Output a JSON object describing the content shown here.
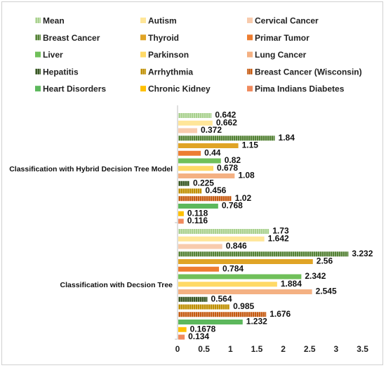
{
  "chart_data": {
    "type": "bar",
    "orientation": "horizontal",
    "title": "",
    "xlabel": "",
    "ylabel": "",
    "xlim": [
      0,
      3.5
    ],
    "x_ticks": [
      "0",
      "0.5",
      "1",
      "1.5",
      "2",
      "2.5",
      "3",
      "3.5"
    ],
    "grid": false,
    "legend_position": "top",
    "categories": [
      "Classification with Hybrid Decision Tree Model",
      "Classification with Decsion Tree"
    ],
    "series": [
      {
        "name": "Mean",
        "color": "#a9d18e",
        "pattern": "hatch",
        "values": [
          0.642,
          1.73
        ],
        "labels": [
          "0.642",
          "1.73"
        ]
      },
      {
        "name": "Autism",
        "color": "#ffe699",
        "pattern": "solid",
        "values": [
          0.662,
          1.642
        ],
        "labels": [
          "0.662",
          "1.642"
        ]
      },
      {
        "name": "Cervical Cancer",
        "color": "#f8cbad",
        "pattern": "solid",
        "values": [
          0.372,
          0.846
        ],
        "labels": [
          "0.372",
          "0.846"
        ]
      },
      {
        "name": "Breast Cancer",
        "color": "#548235",
        "pattern": "hatch",
        "values": [
          1.84,
          3.232
        ],
        "labels": [
          "1.84",
          "3.232"
        ]
      },
      {
        "name": "Thyroid",
        "color": "#e0a426",
        "pattern": "solid",
        "values": [
          1.15,
          2.56
        ],
        "labels": [
          "1.15",
          "2.56"
        ]
      },
      {
        "name": "Primar Tumor",
        "color": "#ed7d31",
        "pattern": "solid",
        "values": [
          0.44,
          0.784
        ],
        "labels": [
          "0.44",
          "0.784"
        ]
      },
      {
        "name": "Liver",
        "color": "#70c05a",
        "pattern": "solid",
        "values": [
          0.82,
          2.342
        ],
        "labels": [
          "0.82",
          "2.342"
        ]
      },
      {
        "name": "Parkinson",
        "color": "#ffd966",
        "pattern": "solid",
        "values": [
          0.678,
          1.884
        ],
        "labels": [
          "0.678",
          "1.884"
        ]
      },
      {
        "name": "Lung Cancer",
        "color": "#f4b183",
        "pattern": "solid",
        "values": [
          1.08,
          2.545
        ],
        "labels": [
          "1.08",
          "2.545"
        ]
      },
      {
        "name": "Hepatitis",
        "color": "#375623",
        "pattern": "hatch",
        "values": [
          0.225,
          0.564
        ],
        "labels": [
          "0.225",
          "0.564"
        ]
      },
      {
        "name": "Arrhythmia",
        "color": "#bf8f00",
        "pattern": "hatch",
        "values": [
          0.456,
          0.985
        ],
        "labels": [
          "0.456",
          "0.985"
        ]
      },
      {
        "name": "Breast Cancer (Wisconsin)",
        "color": "#c55a11",
        "pattern": "hatch",
        "values": [
          1.02,
          1.676
        ],
        "labels": [
          "1.02",
          "1.676"
        ]
      },
      {
        "name": "Heart Disorders",
        "color": "#5cb85c",
        "pattern": "solid",
        "values": [
          0.768,
          1.232
        ],
        "labels": [
          "0.768",
          "1.232"
        ]
      },
      {
        "name": "Chronic Kidney",
        "color": "#ffc000",
        "pattern": "solid",
        "values": [
          0.118,
          0.1678
        ],
        "labels": [
          "0.118",
          "0.1678"
        ]
      },
      {
        "name": "Pima Indians Diabetes",
        "color": "#f08a5d",
        "pattern": "solid",
        "values": [
          0.116,
          0.134
        ],
        "labels": [
          "0.116",
          "0.134"
        ]
      }
    ]
  }
}
